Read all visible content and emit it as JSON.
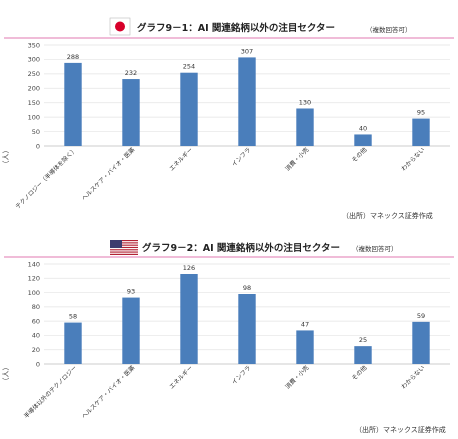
{
  "chart_data": [
    {
      "type": "bar",
      "title": "グラフ9－1：AI 関連銘柄以外の注目セクター",
      "note": "（複数回答可）",
      "ylabel": "（人）",
      "ylim": [
        0,
        350
      ],
      "yticks": [
        0,
        50,
        100,
        150,
        200,
        250,
        300,
        350
      ],
      "grid": true,
      "categories": [
        "テクノロジー（半導体を除く）",
        "ヘルスケア・バイオ・医薬",
        "エネルギー",
        "インフラ",
        "消費・小売",
        "その他",
        "わからない"
      ],
      "values": [
        288,
        232,
        254,
        307,
        130,
        40,
        95
      ],
      "source": "（出所）マネックス証券作成",
      "bar_color": "#4A7EBB",
      "flag": "japan-flag-icon"
    },
    {
      "type": "bar",
      "title": "グラフ9－2：AI 関連銘柄以外の注目セクター",
      "note": "（複数回答可）",
      "ylabel": "（人）",
      "ylim": [
        0,
        140
      ],
      "yticks": [
        0,
        20,
        40,
        60,
        80,
        100,
        120,
        140
      ],
      "grid": true,
      "categories": [
        "半導体以外のテクノロジー",
        "ヘルスケア・バイオ・医薬",
        "エネルギー",
        "インフラ",
        "消費・小売",
        "その他",
        "わからない"
      ],
      "values": [
        58,
        93,
        126,
        98,
        47,
        25,
        59
      ],
      "source": "（出所）マネックス証券作成",
      "bar_color": "#4A7EBB",
      "flag": "us-flag-icon"
    }
  ]
}
